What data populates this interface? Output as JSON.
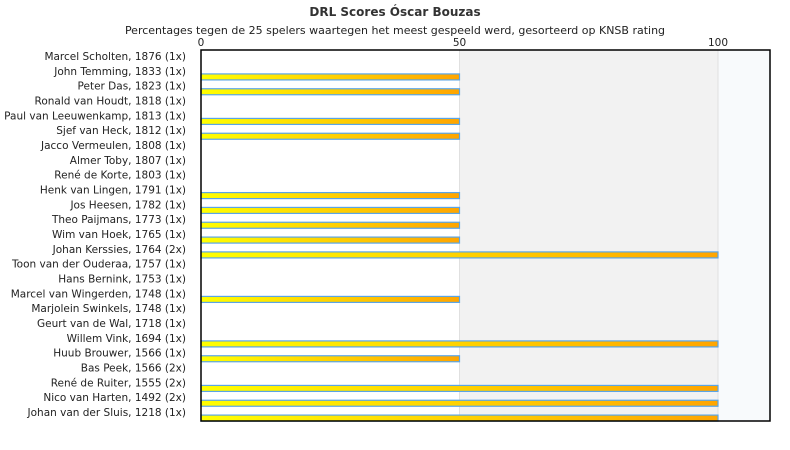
{
  "chart_data": {
    "type": "bar",
    "orientation": "horizontal",
    "title": "DRL Scores Óscar Bouzas",
    "subtitle": "Percentages tegen de 25 spelers waartegen het meest gespeeld werd, gesorteerd op KNSB rating",
    "xlim": [
      0,
      110
    ],
    "xticks": [
      0,
      50,
      100
    ],
    "categories": [
      "Marcel Scholten, 1876 (1x)",
      "John Temming, 1833 (1x)",
      "Peter Das, 1823 (1x)",
      "Ronald van Houdt, 1818 (1x)",
      "Paul van Leeuwenkamp, 1813 (1x)",
      "Sjef van Heck, 1812 (1x)",
      "Jacco Vermeulen, 1808 (1x)",
      "Almer Toby, 1807 (1x)",
      "René de Korte, 1803 (1x)",
      "Henk van Lingen, 1791 (1x)",
      "Jos Heesen, 1782 (1x)",
      "Theo Paijmans, 1773 (1x)",
      "Wim van Hoek, 1765 (1x)",
      "Johan Kerssies, 1764 (2x)",
      "Toon van der Ouderaa, 1757 (1x)",
      "Hans Bernink, 1753 (1x)",
      "Marcel van Wingerden, 1748 (1x)",
      "Marjolein Swinkels, 1748 (1x)",
      "Geurt van de Wal, 1718 (1x)",
      "Willem Vink, 1694 (1x)",
      "Huub Brouwer, 1566 (1x)",
      "Bas Peek, 1566 (2x)",
      "René de Ruiter, 1555 (2x)",
      "Nico van Harten, 1492 (2x)",
      "Johan van der Sluis, 1218 (1x)"
    ],
    "values": [
      0,
      50,
      50,
      0,
      50,
      50,
      0,
      0,
      0,
      50,
      50,
      50,
      50,
      100,
      0,
      0,
      50,
      0,
      0,
      100,
      50,
      0,
      100,
      100,
      100
    ],
    "colors": {
      "bar_start": "#ffff00",
      "bar_end": "#ffa500",
      "bar_border": "#5aa5e6",
      "band_mid": "#f2f2f2",
      "band_high": "#f8fafc"
    }
  }
}
